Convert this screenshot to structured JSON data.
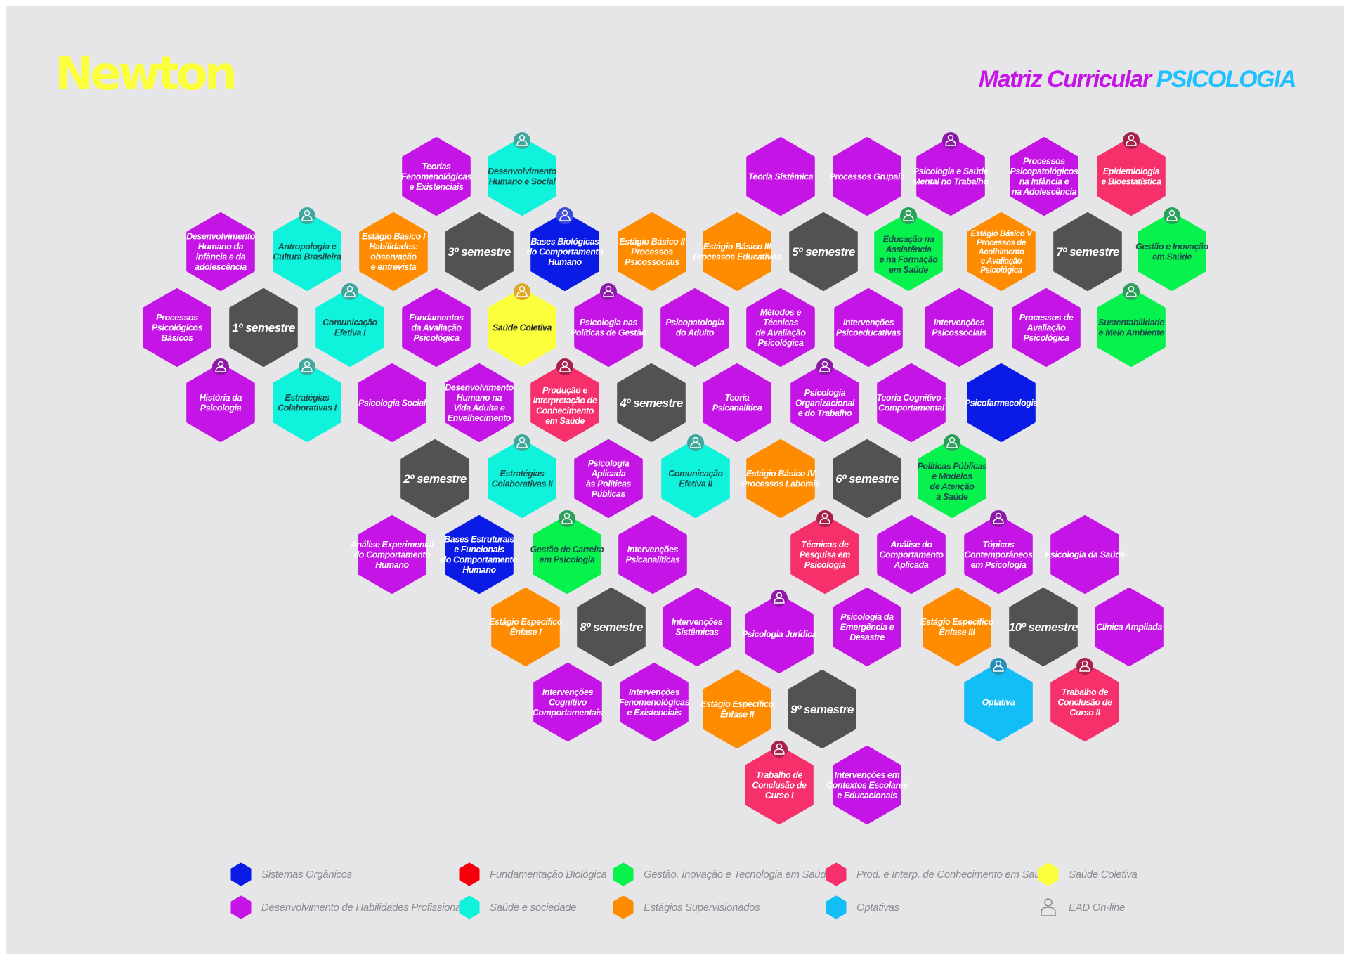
{
  "colors": {
    "background": "#e6e6e8",
    "brand_yellow": "#fbff3c",
    "title_purple": "#c514e6",
    "title_blue": "#1ec0ff",
    "categories": {
      "sistemas": "#0a1be6",
      "fundamentacao": "#f5000a",
      "gestao": "#07f24d",
      "prod": "#f5306a",
      "saude_coletiva": "#fbff3c",
      "habilidades": "#c514e6",
      "sociedade": "#0ff2dc",
      "estagios": "#ff8c00",
      "optativas": "#13bdf5",
      "semestre": "#525254"
    }
  },
  "header": {
    "logo": "Newton",
    "title_prefix": "Matriz Curricular",
    "title_course": "PSICOLOGIA"
  },
  "cells": [
    {
      "lines": [
        "Teorias",
        "Fenomenológicas",
        "e Existenciais"
      ],
      "cat": "habilidades",
      "online": false
    },
    {
      "lines": [
        "Desenvolvimento",
        "Humano e Social"
      ],
      "cat": "sociedade",
      "online": true
    },
    {
      "lines": [
        "Teoria Sistêmica"
      ],
      "cat": "habilidades",
      "online": false
    },
    {
      "lines": [
        "Processos Grupais"
      ],
      "cat": "habilidades",
      "online": false
    },
    {
      "lines": [
        "Psicologia e Saúde",
        "Mental no Trabalho"
      ],
      "cat": "habilidades",
      "online": true
    },
    {
      "lines": [
        "Processos",
        "Psicopatológicos",
        "na Infância e",
        "na Adolescência"
      ],
      "cat": "habilidades",
      "online": false
    },
    {
      "lines": [
        "Epidemiologia",
        "e Bioestatística"
      ],
      "cat": "prod",
      "online": true
    },
    {
      "lines": [
        "Desenvolvimento",
        "Humano da",
        "infância e da",
        "adolescência"
      ],
      "cat": "habilidades",
      "online": false
    },
    {
      "lines": [
        "Antropologia e",
        "Cultura Brasileira"
      ],
      "cat": "sociedade",
      "online": true
    },
    {
      "lines": [
        "Estágio Básico I",
        "Habilidades:",
        "observação",
        "e entrevista"
      ],
      "cat": "estagios",
      "online": false
    },
    {
      "lines": [
        "3º semestre"
      ],
      "cat": "semestre",
      "online": false
    },
    {
      "lines": [
        "Bases Biológicas",
        "do Comportamento",
        "Humano"
      ],
      "cat": "sistemas",
      "online": true
    },
    {
      "lines": [
        "Estágio Básico II",
        "Processos",
        "Psicossociais"
      ],
      "cat": "estagios",
      "online": false
    },
    {
      "lines": [
        "Estágio Básico III",
        "Processos Educativos"
      ],
      "cat": "estagios",
      "online": false
    },
    {
      "lines": [
        "5º semestre"
      ],
      "cat": "semestre",
      "online": false
    },
    {
      "lines": [
        "Educação na",
        "Assistência",
        "e na Formação",
        "em Saúde"
      ],
      "cat": "gestao",
      "online": true
    },
    {
      "lines": [
        "Estágio Básico V",
        "Processos de",
        "Acolhimento",
        "e Avaliação",
        "Psicológica"
      ],
      "cat": "estagios",
      "online": false
    },
    {
      "lines": [
        "7º semestre"
      ],
      "cat": "semestre",
      "online": false
    },
    {
      "lines": [
        "Gestão e Inovação",
        "em Saúde"
      ],
      "cat": "gestao",
      "online": true
    },
    {
      "lines": [
        "Processos",
        "Psicológicos",
        "Básicos"
      ],
      "cat": "habilidades",
      "online": false
    },
    {
      "lines": [
        "1º semestre"
      ],
      "cat": "semestre",
      "online": false
    },
    {
      "lines": [
        "Comunicação",
        "Efetiva I"
      ],
      "cat": "sociedade",
      "online": true
    },
    {
      "lines": [
        "Fundamentos",
        "da Avaliação",
        "Psicológica"
      ],
      "cat": "habilidades",
      "online": false
    },
    {
      "lines": [
        "Saúde Coletiva"
      ],
      "cat": "saude_coletiva",
      "online": true
    },
    {
      "lines": [
        "Psicologia nas",
        "Políticas de Gestão"
      ],
      "cat": "habilidades",
      "online": true
    },
    {
      "lines": [
        "Psicopatologia",
        "do Adulto"
      ],
      "cat": "habilidades",
      "online": false
    },
    {
      "lines": [
        "Métodos e",
        "Técnicas",
        "de Avaliação",
        "Psicológica"
      ],
      "cat": "habilidades",
      "online": false
    },
    {
      "lines": [
        "Intervenções",
        "Psicoeducativas"
      ],
      "cat": "habilidades",
      "online": false
    },
    {
      "lines": [
        "Intervenções",
        "Psicossociais"
      ],
      "cat": "habilidades",
      "online": false
    },
    {
      "lines": [
        "Processos de",
        "Avaliação",
        "Psicológica"
      ],
      "cat": "habilidades",
      "online": false
    },
    {
      "lines": [
        "Sustentabilidade",
        "e Meio Ambiente"
      ],
      "cat": "gestao",
      "online": true
    },
    {
      "lines": [
        "História da",
        "Psicologia"
      ],
      "cat": "habilidades",
      "online": true
    },
    {
      "lines": [
        "Estratégias",
        "Colaborativas I"
      ],
      "cat": "sociedade",
      "online": true
    },
    {
      "lines": [
        "Psicologia Social"
      ],
      "cat": "habilidades",
      "online": false
    },
    {
      "lines": [
        "Desenvolvimento",
        "Humano na",
        "Vida Adulta e",
        "Envelhecimento"
      ],
      "cat": "habilidades",
      "online": false
    },
    {
      "lines": [
        "Produção e",
        "Interpretação de",
        "Conhecimento",
        "em Saúde"
      ],
      "cat": "prod",
      "online": true
    },
    {
      "lines": [
        "4º semestre"
      ],
      "cat": "semestre",
      "online": false
    },
    {
      "lines": [
        "Teoria",
        "Psicanalítica"
      ],
      "cat": "habilidades",
      "online": false
    },
    {
      "lines": [
        "Psicologia",
        "Organizacional",
        "e do Trabalho"
      ],
      "cat": "habilidades",
      "online": true
    },
    {
      "lines": [
        "Teoria Cognitivo -",
        "Comportamental"
      ],
      "cat": "habilidades",
      "online": false
    },
    {
      "lines": [
        "Psicofarmacologia"
      ],
      "cat": "sistemas",
      "online": false
    },
    {
      "lines": [
        "2º semestre"
      ],
      "cat": "semestre",
      "online": false
    },
    {
      "lines": [
        "Estratégias",
        "Colaborativas II"
      ],
      "cat": "sociedade",
      "online": true
    },
    {
      "lines": [
        "Psicologia",
        "Aplicada",
        "às Políticas",
        "Públicas"
      ],
      "cat": "habilidades",
      "online": false
    },
    {
      "lines": [
        "Comunicação",
        "Efetiva II"
      ],
      "cat": "sociedade",
      "online": true
    },
    {
      "lines": [
        "Estágio Básico IV",
        "Processos Laborais"
      ],
      "cat": "estagios",
      "online": false
    },
    {
      "lines": [
        "6º semestre"
      ],
      "cat": "semestre",
      "online": false
    },
    {
      "lines": [
        "Políticas Públicas",
        "e Modelos",
        "de Atenção",
        "à Saúde"
      ],
      "cat": "gestao",
      "online": true
    },
    {
      "lines": [
        "Análise Experimental",
        "do Comportamento",
        "Humano"
      ],
      "cat": "habilidades",
      "online": false
    },
    {
      "lines": [
        "Bases Estruturais",
        "e Funcionais",
        "do Comportamento",
        "Humano"
      ],
      "cat": "sistemas",
      "online": false
    },
    {
      "lines": [
        "Gestão de Carreira",
        "em Psicologia"
      ],
      "cat": "gestao",
      "online": true
    },
    {
      "lines": [
        "Intervenções",
        "Psicanalíticas"
      ],
      "cat": "habilidades",
      "online": false
    },
    {
      "lines": [
        "Técnicas de",
        "Pesquisa em",
        "Psicologia"
      ],
      "cat": "prod",
      "online": true
    },
    {
      "lines": [
        "Análise do",
        "Comportamento",
        "Aplicada"
      ],
      "cat": "habilidades",
      "online": false
    },
    {
      "lines": [
        "Tópicos",
        "Contemporâneos",
        "em Psicologia"
      ],
      "cat": "habilidades",
      "online": true
    },
    {
      "lines": [
        "Psicologia da Saúde"
      ],
      "cat": "habilidades",
      "online": false
    },
    {
      "lines": [
        "Estágio Específico",
        "Ênfase I"
      ],
      "cat": "estagios",
      "online": false
    },
    {
      "lines": [
        "8º semestre"
      ],
      "cat": "semestre",
      "online": false
    },
    {
      "lines": [
        "Intervenções",
        "Sistêmicas"
      ],
      "cat": "habilidades",
      "online": false
    },
    {
      "lines": [
        "Psicologia Jurídica"
      ],
      "cat": "habilidades",
      "online": true
    },
    {
      "lines": [
        "Psicologia da",
        "Emergência e",
        "Desastre"
      ],
      "cat": "habilidades",
      "online": false
    },
    {
      "lines": [
        "Estágio Específico",
        "Ênfase III"
      ],
      "cat": "estagios",
      "online": false
    },
    {
      "lines": [
        "10º semestre"
      ],
      "cat": "semestre",
      "online": false
    },
    {
      "lines": [
        "Clínica Ampliada"
      ],
      "cat": "habilidades",
      "online": false
    },
    {
      "lines": [
        "Intervenções",
        "Cognitivo",
        "Comportamentais"
      ],
      "cat": "habilidades",
      "online": false
    },
    {
      "lines": [
        "Intervenções",
        "Fenomenológicas",
        "e Existenciais"
      ],
      "cat": "habilidades",
      "online": false
    },
    {
      "lines": [
        "Estágio Específico",
        "Ênfase II"
      ],
      "cat": "estagios",
      "online": false
    },
    {
      "lines": [
        "9º semestre"
      ],
      "cat": "semestre",
      "online": false
    },
    {
      "lines": [
        "Optativa"
      ],
      "cat": "optativas",
      "online": true
    },
    {
      "lines": [
        "Trabalho de",
        "Conclusão de",
        "Curso II"
      ],
      "cat": "prod",
      "online": true
    },
    {
      "lines": [
        "Trabalho de",
        "Conclusão de",
        "Curso I"
      ],
      "cat": "prod",
      "online": true
    },
    {
      "lines": [
        "Intervenções em",
        "Contextos Escolares",
        "e Educacionais"
      ],
      "cat": "habilidades",
      "online": false
    }
  ],
  "legend": [
    {
      "label": "Sistemas Orgânicos",
      "cat": "sistemas",
      "icon": "hexagon"
    },
    {
      "label": "Fundamentação Biológica",
      "cat": "fundamentacao",
      "icon": "hexagon"
    },
    {
      "label": "Gestão, Inovação e Tecnologia em Saúde",
      "cat": "gestao",
      "icon": "hexagon"
    },
    {
      "label": "Prod. e Interp. de Conhecimento em Saúde",
      "cat": "prod",
      "icon": "hexagon"
    },
    {
      "label": "Saúde Coletiva",
      "cat": "saude_coletiva",
      "icon": "hexagon"
    },
    {
      "label": "Desenvolvimento de Habilidades Profissionais",
      "cat": "habilidades",
      "icon": "hexagon"
    },
    {
      "label": "Saúde e sociedade",
      "cat": "sociedade",
      "icon": "hexagon"
    },
    {
      "label": "Estágios Supervisionados",
      "cat": "estagios",
      "icon": "hexagon"
    },
    {
      "label": "Optativas",
      "cat": "optativas",
      "icon": "hexagon"
    },
    {
      "label": "EAD On-line",
      "cat": "",
      "icon": "person-online-icon"
    }
  ]
}
